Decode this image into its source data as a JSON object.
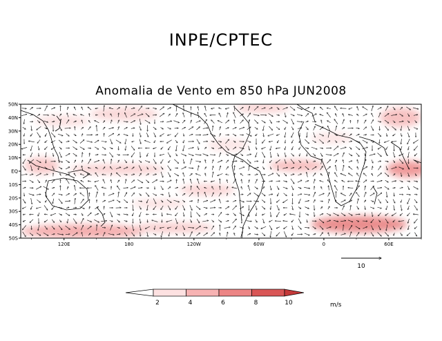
{
  "header": {
    "title": "INPE/CPTEC",
    "subtitle": "Anomalia de Vento em 850 hPa JUN2008"
  },
  "map": {
    "lat_labels": [
      "50N",
      "40N",
      "30N",
      "20N",
      "10N",
      "EQ",
      "10S",
      "20S",
      "30S",
      "40S",
      "50S"
    ],
    "lon_labels": [
      "120E",
      "180",
      "120W",
      "60W",
      "0",
      "60E"
    ],
    "lat_range": [
      -50,
      50
    ],
    "lon_range_east": [
      80,
      450
    ]
  },
  "reference_vector": {
    "label": "10"
  },
  "colorbar": {
    "ticks": [
      "2",
      "4",
      "6",
      "8",
      "10"
    ],
    "colors": [
      "#ffffff",
      "#fde1e1",
      "#f7b3b3",
      "#ec8585",
      "#d95656",
      "#c43a3a"
    ],
    "unit": "m/s"
  },
  "colors": {
    "accent": "#e67a7a",
    "land": "#000000"
  }
}
